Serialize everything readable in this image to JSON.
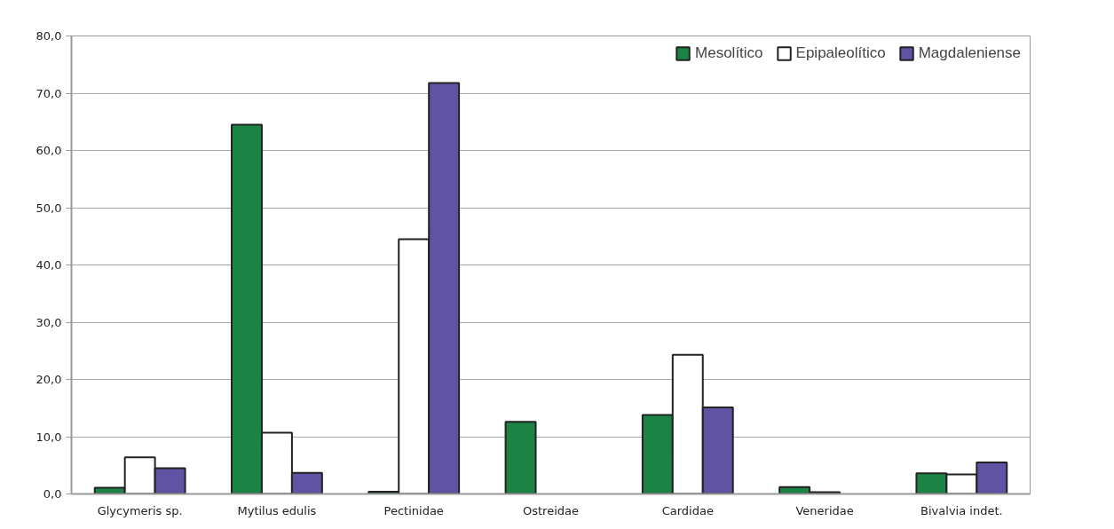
{
  "chart_data": {
    "type": "bar",
    "categories": [
      "Glycymeris sp.",
      "Mytilus edulis",
      "Pectinidae",
      "Ostreidae",
      "Cardidae",
      "Veneridae",
      "Bivalvia indet."
    ],
    "series": [
      {
        "name": "Mesolítico",
        "color": "#1b8445",
        "values": [
          1.1,
          64.5,
          0.4,
          12.6,
          13.8,
          1.2,
          3.6
        ]
      },
      {
        "name": "Epipaleolítico",
        "color": "#ffffff",
        "values": [
          6.4,
          10.7,
          44.5,
          null,
          24.3,
          0.3,
          3.4
        ]
      },
      {
        "name": "Magdaleniense",
        "color": "#6153a3",
        "values": [
          4.5,
          3.7,
          71.8,
          null,
          15.1,
          null,
          5.5
        ]
      }
    ],
    "ylim": [
      0,
      80
    ],
    "yticks": [
      {
        "value": 0,
        "label": "0,0"
      },
      {
        "value": 10,
        "label": "10,0"
      },
      {
        "value": 20,
        "label": "20,0"
      },
      {
        "value": 30,
        "label": "30,0"
      },
      {
        "value": 40,
        "label": "40,0"
      },
      {
        "value": 50,
        "label": "50,0"
      },
      {
        "value": 60,
        "label": "60,0"
      },
      {
        "value": 70,
        "label": "70,0"
      },
      {
        "value": 80,
        "label": "80,0"
      }
    ],
    "grid": "y",
    "legend": "top right"
  }
}
